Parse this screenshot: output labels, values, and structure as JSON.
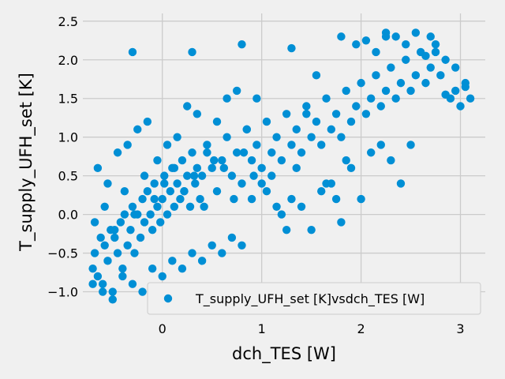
{
  "chart_data": {
    "type": "scatter",
    "xlabel": "dch_TES [W]",
    "ylabel": "T_supply_UFH_set [K]",
    "xlim": [
      -0.8,
      3.25
    ],
    "ylim": [
      -1.25,
      2.6
    ],
    "xticks": [
      0,
      1,
      2,
      3
    ],
    "yticks": [
      -1.0,
      -0.5,
      0.0,
      0.5,
      1.0,
      1.5,
      2.0,
      2.5
    ],
    "xtick_labels": [
      "0",
      "1",
      "2",
      "3"
    ],
    "ytick_labels": [
      "−1.0",
      "−0.5",
      "0.0",
      "0.5",
      "1.0",
      "1.5",
      "2.0",
      "2.5"
    ],
    "grid": true,
    "legend_position": "lower-right",
    "color": "#008fd5",
    "background": "#f0f0f0",
    "series": [
      {
        "name": "T_supply_UFH_set [K]vsdch_TES [W]",
        "x": [
          -0.7,
          -0.68,
          -0.65,
          -0.62,
          -0.6,
          -0.58,
          -0.55,
          -0.52,
          -0.5,
          -0.48,
          -0.45,
          -0.42,
          -0.4,
          -0.38,
          -0.35,
          -0.32,
          -0.3,
          -0.28,
          -0.25,
          -0.22,
          -0.2,
          -0.18,
          -0.15,
          -0.12,
          -0.1,
          -0.08,
          -0.05,
          -0.02,
          0.0,
          0.02,
          0.05,
          0.08,
          0.1,
          0.12,
          0.15,
          0.18,
          0.2,
          0.22,
          0.25,
          0.28,
          0.3,
          0.33,
          0.35,
          0.38,
          0.4,
          0.45,
          0.5,
          0.55,
          0.6,
          0.65,
          0.7,
          0.75,
          0.8,
          0.85,
          0.9,
          0.95,
          1.0,
          1.05,
          1.1,
          1.15,
          1.2,
          1.25,
          1.3,
          1.35,
          1.4,
          1.45,
          1.5,
          1.55,
          1.6,
          1.65,
          1.7,
          1.75,
          1.8,
          1.85,
          1.9,
          1.95,
          2.0,
          2.05,
          2.1,
          2.15,
          2.2,
          2.25,
          2.3,
          2.35,
          2.4,
          2.45,
          2.5,
          2.55,
          2.6,
          2.65,
          2.7,
          2.75,
          2.8,
          2.85,
          2.9,
          2.95,
          3.0,
          3.05,
          3.1,
          -0.65,
          -0.55,
          -0.45,
          -0.35,
          -0.25,
          -0.15,
          -0.05,
          0.05,
          0.15,
          0.25,
          0.35,
          0.45,
          0.55,
          0.65,
          0.75,
          0.85,
          0.95,
          1.05,
          1.15,
          1.25,
          1.35,
          1.45,
          1.55,
          1.65,
          1.75,
          1.85,
          1.95,
          2.05,
          2.15,
          2.25,
          2.35,
          2.45,
          2.55,
          2.65,
          2.75,
          2.85,
          2.95,
          3.05,
          -0.7,
          -0.6,
          -0.5,
          -0.4,
          -0.3,
          -0.2,
          -0.1,
          0.0,
          0.1,
          0.2,
          0.3,
          0.4,
          0.5,
          0.6,
          0.7,
          0.8,
          0.9,
          1.0,
          1.1,
          1.2,
          1.3,
          1.4,
          1.5,
          1.6,
          1.7,
          1.8,
          1.9,
          2.0,
          2.1,
          2.2,
          2.3,
          2.4,
          2.5,
          -0.68,
          -0.58,
          -0.48,
          -0.38,
          -0.28,
          -0.18,
          -0.08,
          0.02,
          0.12,
          0.22,
          0.32,
          0.42,
          0.52,
          0.62,
          0.72,
          0.82,
          0.92,
          -0.3,
          0.3,
          0.8,
          1.3,
          1.8,
          2.25,
          2.7
        ],
        "y": [
          -0.7,
          -0.5,
          -0.8,
          -0.3,
          -0.9,
          -0.4,
          -0.6,
          -0.2,
          -1.0,
          -0.3,
          -0.5,
          -0.1,
          -0.7,
          0.0,
          -0.4,
          -0.2,
          0.1,
          -0.5,
          0.0,
          -0.3,
          0.2,
          -0.1,
          0.3,
          0.0,
          -0.2,
          0.4,
          0.1,
          -0.1,
          0.2,
          0.5,
          0.0,
          0.3,
          0.6,
          0.1,
          0.4,
          0.2,
          0.7,
          0.3,
          0.5,
          0.1,
          0.8,
          0.4,
          0.6,
          0.2,
          0.5,
          0.9,
          0.6,
          0.3,
          0.7,
          1.0,
          0.5,
          0.8,
          0.4,
          1.1,
          0.7,
          0.9,
          0.6,
          1.2,
          0.8,
          1.0,
          0.7,
          1.3,
          0.9,
          1.1,
          0.8,
          1.4,
          1.0,
          1.2,
          0.9,
          1.5,
          1.1,
          1.3,
          1.0,
          1.6,
          1.2,
          1.4,
          1.7,
          1.3,
          1.5,
          1.8,
          1.4,
          1.6,
          1.9,
          1.5,
          1.7,
          2.0,
          1.6,
          1.8,
          2.1,
          1.7,
          1.9,
          2.2,
          1.8,
          2.0,
          1.5,
          1.9,
          1.4,
          1.7,
          1.5,
          0.6,
          0.4,
          0.8,
          0.9,
          1.1,
          1.2,
          0.7,
          0.9,
          1.0,
          1.4,
          1.3,
          0.8,
          1.2,
          1.5,
          1.6,
          1.1,
          1.5,
          0.3,
          0.1,
          -0.2,
          0.6,
          1.3,
          1.8,
          0.4,
          0.2,
          0.7,
          2.2,
          2.25,
          2.1,
          2.3,
          2.3,
          2.2,
          2.35,
          2.05,
          2.1,
          1.55,
          1.6,
          1.65,
          -0.9,
          -1.0,
          -1.1,
          -0.8,
          -0.9,
          -1.0,
          -0.7,
          -0.8,
          -0.6,
          -0.7,
          -0.5,
          -0.6,
          -0.4,
          -0.5,
          -0.3,
          -0.4,
          0.2,
          0.4,
          0.5,
          0.0,
          0.2,
          0.1,
          -0.2,
          0.3,
          0.4,
          -0.1,
          0.6,
          0.2,
          0.8,
          0.9,
          0.7,
          0.4,
          0.9,
          -0.1,
          0.1,
          -0.2,
          0.3,
          0.0,
          0.5,
          0.2,
          0.4,
          0.6,
          0.3,
          0.5,
          0.1,
          0.7,
          0.6,
          0.2,
          0.8,
          0.5,
          2.1,
          2.1,
          2.2,
          2.15,
          2.3,
          2.35,
          2.3
        ]
      }
    ]
  }
}
